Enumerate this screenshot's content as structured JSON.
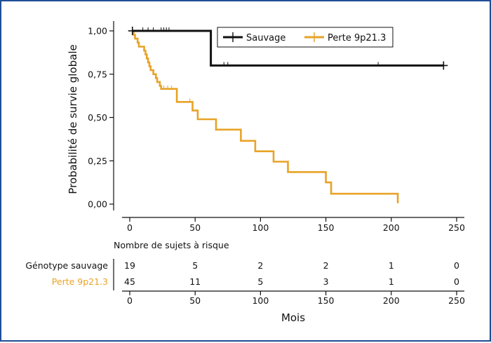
{
  "chart_data": {
    "type": "line",
    "subtype": "kaplan-meier",
    "ylabel": "Probabilité de survie globale",
    "xlabel": "Mois",
    "xlim": [
      0,
      250
    ],
    "ylim": [
      0,
      1
    ],
    "x_ticks": [
      "0",
      "50",
      "100",
      "150",
      "200",
      "250"
    ],
    "y_ticks": [
      "0,00",
      "0,25",
      "0,50",
      "0,75",
      "1,00"
    ],
    "legend_position": "top-right",
    "series": [
      {
        "name": "Sauvage",
        "color": "#111111",
        "steps": [
          [
            2,
            1.0
          ],
          [
            62,
            1.0
          ],
          [
            62,
            0.8
          ],
          [
            240,
            0.8
          ]
        ],
        "censored_x": [
          10,
          14,
          18,
          24,
          26,
          28,
          30,
          72,
          75,
          190,
          240
        ]
      },
      {
        "name": "Perte 9p21.3",
        "color": "#e8a327",
        "steps": [
          [
            2,
            1.0
          ],
          [
            3,
            1.0
          ],
          [
            3,
            0.977
          ],
          [
            4,
            0.977
          ],
          [
            4,
            0.955
          ],
          [
            6,
            0.955
          ],
          [
            6,
            0.932
          ],
          [
            7,
            0.932
          ],
          [
            7,
            0.909
          ],
          [
            11,
            0.909
          ],
          [
            11,
            0.886
          ],
          [
            12,
            0.886
          ],
          [
            12,
            0.864
          ],
          [
            13,
            0.864
          ],
          [
            13,
            0.841
          ],
          [
            14,
            0.841
          ],
          [
            14,
            0.818
          ],
          [
            15,
            0.818
          ],
          [
            15,
            0.795
          ],
          [
            16,
            0.795
          ],
          [
            16,
            0.773
          ],
          [
            18,
            0.773
          ],
          [
            18,
            0.75
          ],
          [
            20,
            0.75
          ],
          [
            20,
            0.727
          ],
          [
            21,
            0.727
          ],
          [
            21,
            0.705
          ],
          [
            23,
            0.705
          ],
          [
            23,
            0.682
          ],
          [
            24,
            0.682
          ],
          [
            24,
            0.665
          ],
          [
            36,
            0.665
          ],
          [
            36,
            0.59
          ],
          [
            48,
            0.59
          ],
          [
            48,
            0.54
          ],
          [
            52,
            0.54
          ],
          [
            52,
            0.49
          ],
          [
            66,
            0.49
          ],
          [
            66,
            0.43
          ],
          [
            85,
            0.43
          ],
          [
            85,
            0.365
          ],
          [
            96,
            0.365
          ],
          [
            96,
            0.305
          ],
          [
            110,
            0.305
          ],
          [
            110,
            0.245
          ],
          [
            121,
            0.245
          ],
          [
            121,
            0.185
          ],
          [
            150,
            0.185
          ],
          [
            150,
            0.125
          ],
          [
            154,
            0.125
          ],
          [
            154,
            0.06
          ],
          [
            205,
            0.06
          ],
          [
            205,
            0.005
          ]
        ],
        "censored_x": [
          26,
          29,
          32,
          46
        ]
      }
    ],
    "risk_table": {
      "title": "Nombre de sujets à risque",
      "times": [
        "0",
        "50",
        "100",
        "150",
        "200",
        "250"
      ],
      "rows": [
        {
          "label": "Génotype sauvage",
          "color": "#111111",
          "values": [
            "19",
            "5",
            "2",
            "2",
            "1",
            "0"
          ]
        },
        {
          "label": "Perte 9p21.3",
          "color": "#e8a327",
          "values": [
            "45",
            "11",
            "5",
            "3",
            "1",
            "0"
          ]
        }
      ],
      "xlabel": "Mois"
    }
  }
}
